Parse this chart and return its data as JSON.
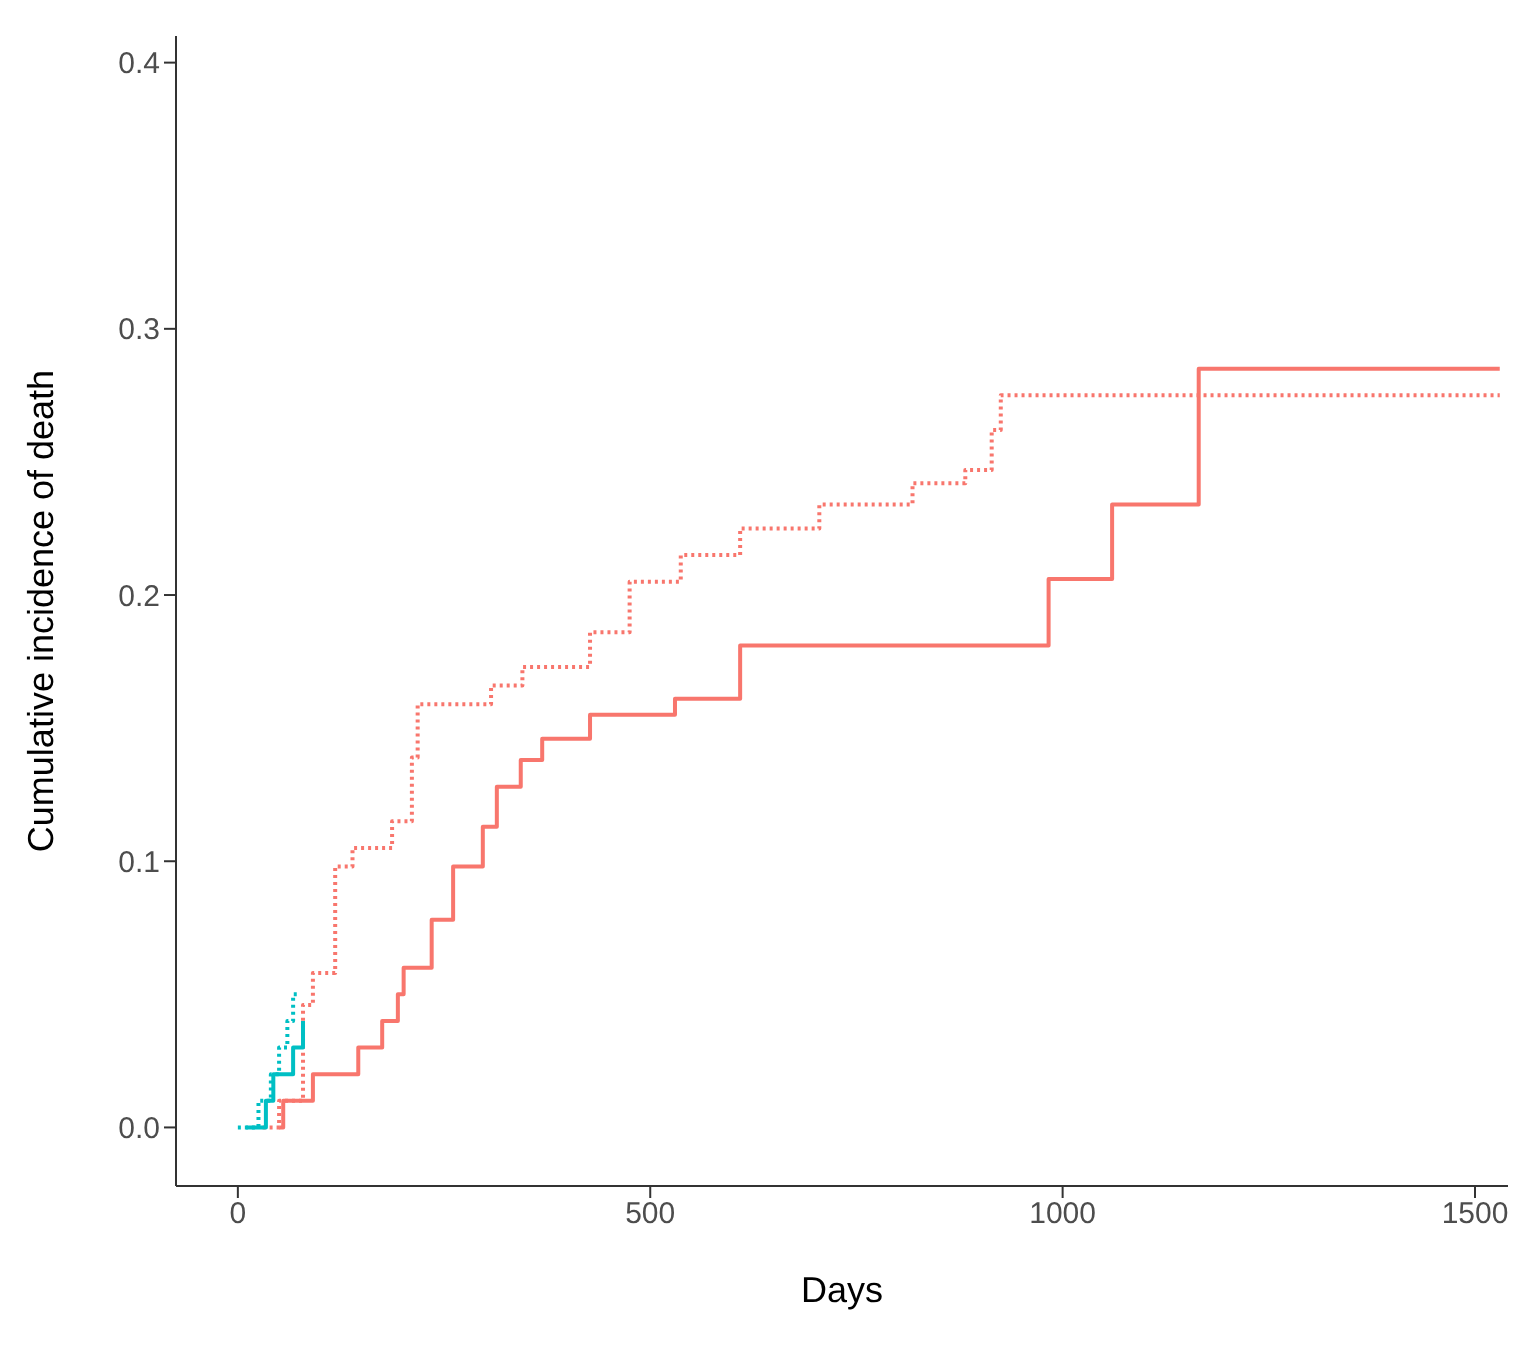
{
  "chart_data": {
    "type": "step",
    "xlabel": "Days",
    "ylabel": "Cumulative incidence of death",
    "xlim": [
      -75,
      1540
    ],
    "xticks": [
      0,
      500,
      1000,
      1500
    ],
    "ylim": [
      -0.022,
      0.41
    ],
    "yticks": [
      {
        "value": 0,
        "label": "0.0"
      },
      0.1,
      0.2,
      0.3,
      0.4
    ],
    "grid": false,
    "legend": false,
    "series": [
      {
        "color": "#f8766d",
        "line_style": "solid",
        "x": [
          50,
          55,
          91,
          146,
          175,
          194,
          201,
          235,
          261,
          297,
          314,
          343,
          369,
          427,
          530,
          609,
          983,
          1060,
          1165,
          1530
        ],
        "values": [
          0,
          0.01,
          0.02,
          0.03,
          0.04,
          0.05,
          0.06,
          0.078,
          0.098,
          0.113,
          0.128,
          0.138,
          0.146,
          0.155,
          0.161,
          0.181,
          0.206,
          0.234,
          0.285,
          0.285
        ]
      },
      {
        "color": "#f8766d",
        "line_style": "dotted",
        "x": [
          30,
          50,
          79,
          91,
          118,
          139,
          187,
          211,
          218,
          307,
          345,
          427,
          475,
          537,
          609,
          705,
          818,
          882,
          914,
          925,
          1530
        ],
        "values": [
          0,
          0.01,
          0.046,
          0.058,
          0.098,
          0.105,
          0.115,
          0.139,
          0.159,
          0.166,
          0.173,
          0.186,
          0.205,
          0.215,
          0.225,
          0.234,
          0.242,
          0.247,
          0.262,
          0.275,
          0.275
        ]
      },
      {
        "color": "#00bfc4",
        "line_style": "solid",
        "x": [
          10,
          34,
          43,
          67,
          79
        ],
        "values": [
          0,
          0.01,
          0.02,
          0.03,
          0.04
        ]
      },
      {
        "color": "#00bfc4",
        "line_style": "dotted",
        "x": [
          0,
          25,
          40,
          50,
          60,
          67,
          72
        ],
        "values": [
          0,
          0.01,
          0.02,
          0.03,
          0.04,
          0.05,
          0.05
        ]
      }
    ]
  }
}
